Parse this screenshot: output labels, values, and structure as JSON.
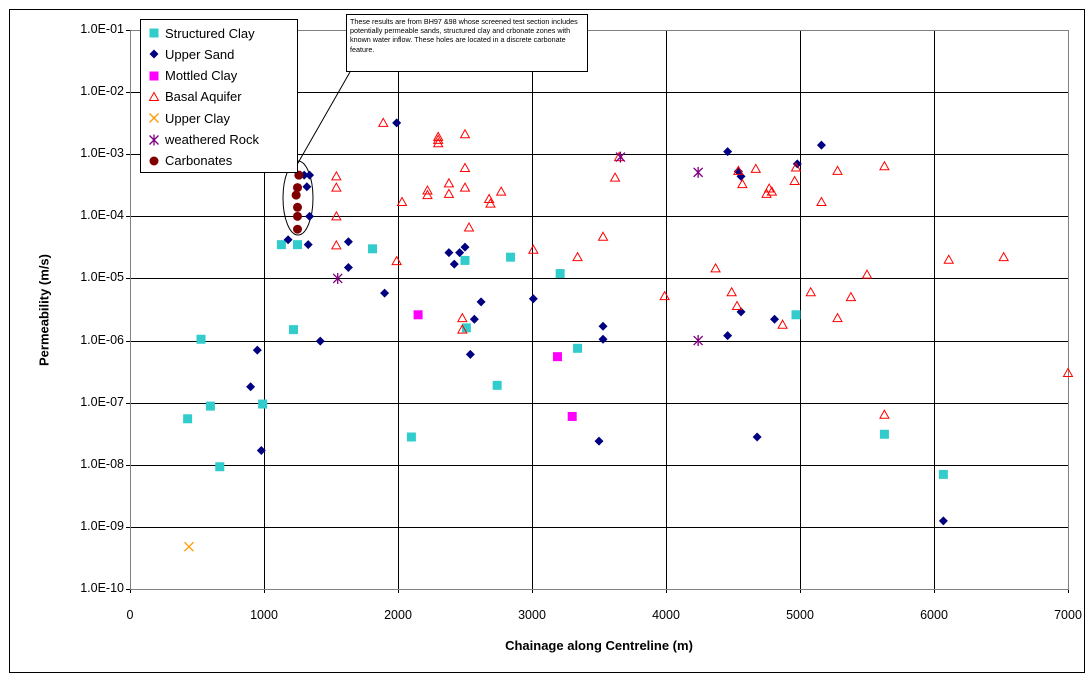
{
  "chart_data": {
    "type": "scatter",
    "title": "",
    "xlabel": "Chainage along Centreline (m)",
    "ylabel": "Permeability (m/s)",
    "xlim": [
      0,
      7000
    ],
    "ylim": [
      1e-10,
      0.1
    ],
    "y_scale": "log",
    "grid": true,
    "legend_position": "top-left",
    "x_ticks": [
      "0",
      "1000",
      "2000",
      "3000",
      "4000",
      "5000",
      "6000",
      "7000"
    ],
    "y_ticks": [
      "1.0E-01",
      "1.0E-02",
      "1.0E-03",
      "1.0E-04",
      "1.0E-05",
      "1.0E-06",
      "1.0E-07",
      "1.0E-08",
      "1.0E-09",
      "1.0E-10"
    ],
    "annotation": "These results are from BH97 &98 whose screened test section includes potentially permeable sands, structured clay and crbonate zones with known water inflow. These holes are located in a discrete carbonate feature.",
    "series": [
      {
        "name": "Structured Clay",
        "marker": "square",
        "color": "#33CCCC",
        "points": [
          [
            430,
            5.5e-08
          ],
          [
            530,
            1.05e-06
          ],
          [
            600,
            8.8e-08
          ],
          [
            670,
            9.3e-09
          ],
          [
            990,
            9.5e-08
          ],
          [
            1130,
            3.5e-05
          ],
          [
            1220,
            1.5e-06
          ],
          [
            1250,
            3.5e-05
          ],
          [
            1810,
            3e-05
          ],
          [
            2100,
            2.8e-08
          ],
          [
            2500,
            1.95e-05
          ],
          [
            2510,
            1.6e-06
          ],
          [
            2740,
            1.9e-07
          ],
          [
            2840,
            2.2e-05
          ],
          [
            3210,
            1.2e-05
          ],
          [
            3340,
            7.5e-07
          ],
          [
            4970,
            2.6e-06
          ],
          [
            5630,
            3.1e-08
          ],
          [
            6070,
            7e-09
          ]
        ]
      },
      {
        "name": "Upper Sand",
        "marker": "diamond",
        "color": "#000080",
        "points": [
          [
            900,
            1.8e-07
          ],
          [
            950,
            7e-07
          ],
          [
            980,
            1.7e-08
          ],
          [
            1180,
            4.2e-05
          ],
          [
            1270,
            0.00046
          ],
          [
            1300,
            0.00046
          ],
          [
            1320,
            0.0003
          ],
          [
            1330,
            3.5e-05
          ],
          [
            1340,
            0.00046
          ],
          [
            1340,
            0.0001
          ],
          [
            1420,
            9.8e-07
          ],
          [
            1630,
            1.5e-05
          ],
          [
            1630,
            3.9e-05
          ],
          [
            1900,
            5.8e-06
          ],
          [
            1990,
            0.0032
          ],
          [
            2380,
            2.6e-05
          ],
          [
            2420,
            1.7e-05
          ],
          [
            2460,
            2.6e-05
          ],
          [
            2500,
            3.2e-05
          ],
          [
            2540,
            6e-07
          ],
          [
            2570,
            2.2e-06
          ],
          [
            2620,
            4.2e-06
          ],
          [
            3010,
            4.7e-06
          ],
          [
            3500,
            2.4e-08
          ],
          [
            3530,
            1.05e-06
          ],
          [
            3530,
            1.7e-06
          ],
          [
            4460,
            0.0011
          ],
          [
            4460,
            1.2e-06
          ],
          [
            4540,
            0.00053
          ],
          [
            4560,
            0.00044
          ],
          [
            4560,
            2.9e-06
          ],
          [
            4680,
            2.8e-08
          ],
          [
            4810,
            2.2e-06
          ],
          [
            4980,
            0.0007
          ],
          [
            5160,
            0.0014
          ],
          [
            6070,
            1.25e-09
          ]
        ]
      },
      {
        "name": "Mottled Clay",
        "marker": "square",
        "color": "#FF00FF",
        "points": [
          [
            2150,
            2.6e-06
          ],
          [
            3190,
            5.5e-07
          ],
          [
            3300,
            6e-08
          ]
        ]
      },
      {
        "name": "Basal Aquifer",
        "marker": "triangle-open",
        "color": "#FF0000",
        "points": [
          [
            1540,
            0.00044
          ],
          [
            1540,
            0.00029
          ],
          [
            1540,
            0.0001
          ],
          [
            1540,
            3.4e-05
          ],
          [
            1890,
            0.0032
          ],
          [
            1990,
            1.9e-05
          ],
          [
            2030,
            0.00017
          ],
          [
            2220,
            0.00026
          ],
          [
            2220,
            0.00022
          ],
          [
            2300,
            0.0019
          ],
          [
            2300,
            0.0015
          ],
          [
            2300,
            0.0017
          ],
          [
            2380,
            0.00034
          ],
          [
            2380,
            0.00023
          ],
          [
            2480,
            2.3e-06
          ],
          [
            2480,
            1.5e-06
          ],
          [
            2500,
            0.0021
          ],
          [
            2500,
            0.00029
          ],
          [
            2500,
            0.0006
          ],
          [
            2530,
            6.6e-05
          ],
          [
            2680,
            0.00019
          ],
          [
            2690,
            0.00016
          ],
          [
            2770,
            0.00025
          ],
          [
            3010,
            2.9e-05
          ],
          [
            3340,
            2.2e-05
          ],
          [
            3530,
            4.7e-05
          ],
          [
            3620,
            0.00042
          ],
          [
            3650,
            0.0009
          ],
          [
            3990,
            5.2e-06
          ],
          [
            4370,
            1.45e-05
          ],
          [
            4490,
            6e-06
          ],
          [
            4530,
            3.6e-06
          ],
          [
            4540,
            0.00054
          ],
          [
            4570,
            0.00033
          ],
          [
            4670,
            0.00058
          ],
          [
            4750,
            0.00023
          ],
          [
            4770,
            0.00028
          ],
          [
            4790,
            0.00025
          ],
          [
            4870,
            1.8e-06
          ],
          [
            4960,
            0.00037
          ],
          [
            4970,
            0.00061
          ],
          [
            5080,
            6e-06
          ],
          [
            5160,
            0.00017
          ],
          [
            5280,
            0.00054
          ],
          [
            5280,
            2.3e-06
          ],
          [
            5380,
            5e-06
          ],
          [
            5500,
            1.15e-05
          ],
          [
            5630,
            0.00064
          ],
          [
            5630,
            6.4e-08
          ],
          [
            6110,
            2e-05
          ],
          [
            6520,
            2.2e-05
          ],
          [
            7000,
            3e-07
          ]
        ]
      },
      {
        "name": "Upper Clay",
        "marker": "x",
        "color": "#FF9900",
        "points": [
          [
            440,
            4.8e-10
          ]
        ]
      },
      {
        "name": "weathered Rock",
        "marker": "asterisk",
        "color": "#800080",
        "points": [
          [
            1550,
            1e-05
          ],
          [
            3660,
            0.0009
          ],
          [
            4240,
            0.00051
          ],
          [
            4240,
            1e-06
          ]
        ]
      },
      {
        "name": "Carbonates",
        "marker": "circle",
        "color": "#800000",
        "points": [
          [
            1260,
            0.00046
          ],
          [
            1250,
            0.00029
          ],
          [
            1240,
            0.00022
          ],
          [
            1250,
            0.00014
          ],
          [
            1250,
            0.0001
          ],
          [
            1250,
            6.2e-05
          ]
        ]
      }
    ]
  }
}
